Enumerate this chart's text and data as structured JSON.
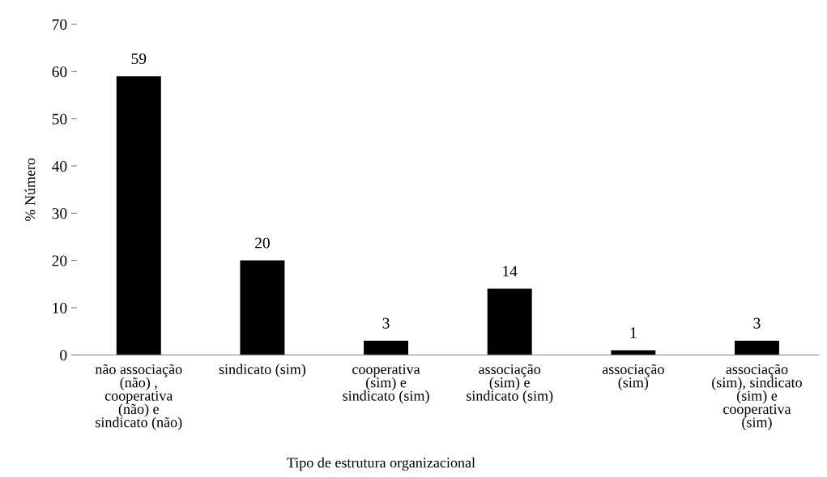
{
  "chart_data": {
    "type": "bar",
    "ylabel": "% Número",
    "xlabel": "Tipo de estrutura organizacional",
    "categories": [
      "não associação\n(não) ,\ncooperativa\n(não) e\nsindicato (não)",
      "sindicato (sim)",
      "cooperativa\n(sim) e\nsindicato (sim)",
      "associação\n(sim) e\nsindicato (sim)",
      "associação\n(sim)",
      "associação\n(sim), sindicato\n(sim) e\ncooperativa\n(sim)"
    ],
    "values": [
      59,
      20,
      3,
      14,
      1,
      3
    ],
    "color": "#000000",
    "ylim": [
      0,
      70
    ],
    "yticks": [
      0,
      10,
      20,
      30,
      40,
      50,
      60,
      70
    ],
    "data_labels": true,
    "grid": false,
    "legend": false
  }
}
